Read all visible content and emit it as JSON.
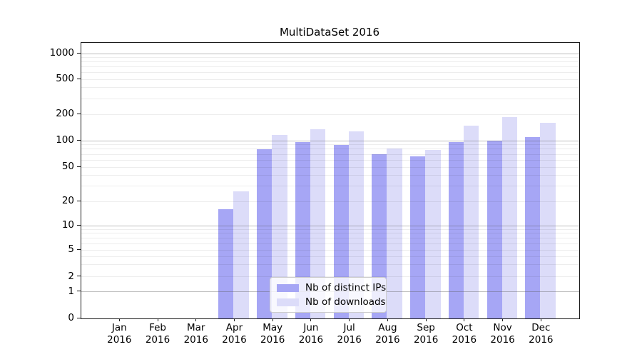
{
  "chart_data": {
    "type": "bar",
    "title": "MultiDataSet 2016",
    "categories": [
      "Jan",
      "Feb",
      "Mar",
      "Apr",
      "May",
      "Jun",
      "Jul",
      "Aug",
      "Sep",
      "Oct",
      "Nov",
      "Dec"
    ],
    "category_year": "2016",
    "series": [
      {
        "name": "Nb of distinct IPs",
        "color": "#a6a6f5",
        "values": [
          0,
          0,
          0,
          16,
          80,
          96,
          90,
          70,
          66,
          97,
          100,
          110
        ]
      },
      {
        "name": "Nb of downloads",
        "color": "#dcdcf9",
        "values": [
          0,
          0,
          0,
          26,
          116,
          136,
          128,
          82,
          79,
          148,
          185,
          160
        ]
      }
    ],
    "yscale": "symlog",
    "yticks": [
      0,
      1,
      2,
      5,
      10,
      20,
      50,
      100,
      200,
      500,
      1000
    ],
    "ylim": [
      0,
      1300
    ],
    "xlabel": "",
    "ylabel": "",
    "grid": true,
    "legend_position": "lower center"
  }
}
